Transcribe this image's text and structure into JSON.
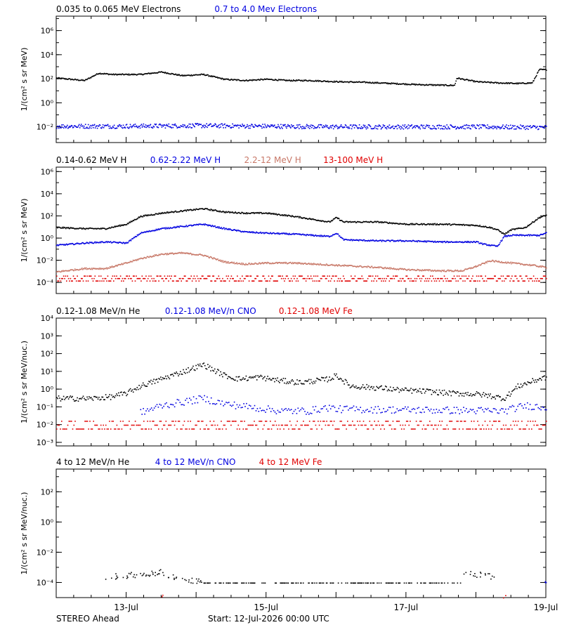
{
  "footer": {
    "spacecraft": "STEREO Ahead",
    "start": "Start: 12-Jul-2026 00:00 UTC"
  },
  "x_axis": {
    "range_days": [
      0,
      7
    ],
    "ticks": [
      {
        "day": 1,
        "label": "13-Jul"
      },
      {
        "day": 3,
        "label": "15-Jul"
      },
      {
        "day": 5,
        "label": "17-Jul"
      },
      {
        "day": 7,
        "label": "19-Jul"
      }
    ]
  },
  "chart_data": [
    {
      "type": "scatter",
      "ylabel": "1/(cm² s sr MeV)",
      "yscale": "log",
      "ylim_exp": [
        -3.3,
        7.2
      ],
      "y_ticks": [
        {
          "exp": -2,
          "label": "10⁻²"
        },
        {
          "exp": 0,
          "label": "10⁰"
        },
        {
          "exp": 2,
          "label": "10²"
        },
        {
          "exp": 4,
          "label": "10⁴"
        },
        {
          "exp": 6,
          "label": "10⁶"
        }
      ],
      "legend": [
        {
          "label": "0.035 to 0.065 MeV Electrons",
          "color": "#000000"
        },
        {
          "label": "0.7 to 4.0 Mev Electrons",
          "color": "#0000e0"
        }
      ],
      "series": [
        {
          "name": "0.035 to 0.065 MeV Electrons",
          "color": "#000000",
          "x": [
            0,
            0.4,
            0.6,
            0.8,
            1.2,
            1.5,
            1.8,
            2.1,
            2.4,
            2.7,
            3.0,
            3.3,
            3.6,
            4.0,
            4.4,
            4.8,
            5.2,
            5.6,
            5.69,
            5.72,
            6.0,
            6.3,
            6.6,
            6.8,
            6.9,
            7.0
          ],
          "y_exp": [
            2.1,
            1.9,
            2.5,
            2.4,
            2.4,
            2.6,
            2.3,
            2.4,
            2.0,
            1.9,
            2.0,
            1.9,
            1.9,
            1.8,
            1.75,
            1.65,
            1.55,
            1.5,
            1.5,
            2.1,
            1.8,
            1.7,
            1.65,
            1.7,
            2.8,
            2.8
          ]
        },
        {
          "name": "0.7 to 4.0 Mev Electrons",
          "color": "#0000e0",
          "x": [
            0,
            1,
            2,
            3,
            4,
            5,
            6,
            7
          ],
          "y_exp": [
            -1.9,
            -1.9,
            -1.85,
            -1.9,
            -1.95,
            -1.95,
            -1.95,
            -2.0
          ]
        }
      ]
    },
    {
      "type": "scatter",
      "ylabel": "1/(cm² s sr MeV)",
      "yscale": "log",
      "ylim_exp": [
        -5,
        6.4
      ],
      "y_ticks": [
        {
          "exp": -4,
          "label": "10⁻⁴"
        },
        {
          "exp": -2,
          "label": "10⁻²"
        },
        {
          "exp": 0,
          "label": "10⁰"
        },
        {
          "exp": 2,
          "label": "10²"
        },
        {
          "exp": 4,
          "label": "10⁴"
        },
        {
          "exp": 6,
          "label": "10⁶"
        }
      ],
      "legend": [
        {
          "label": "0.14-0.62 MeV H",
          "color": "#000000"
        },
        {
          "label": "0.62-2.22 MeV H",
          "color": "#0000e0"
        },
        {
          "label": "2.2-12 MeV H",
          "color": "#c87868"
        },
        {
          "label": "13-100 MeV H",
          "color": "#e00000"
        }
      ],
      "series": [
        {
          "name": "0.14-0.62 MeV H",
          "color": "#000000",
          "x": [
            0,
            0.4,
            0.7,
            1.0,
            1.2,
            1.5,
            1.8,
            2.1,
            2.4,
            2.7,
            3.0,
            3.4,
            3.9,
            4.0,
            4.1,
            4.6,
            5.0,
            5.5,
            6.0,
            6.2,
            6.3,
            6.4,
            6.5,
            6.7,
            6.9,
            7.0
          ],
          "y_exp": [
            1.0,
            0.9,
            0.9,
            1.3,
            2.0,
            2.3,
            2.5,
            2.7,
            2.4,
            2.3,
            2.3,
            2.0,
            1.5,
            1.9,
            1.5,
            1.5,
            1.3,
            1.3,
            1.2,
            1.0,
            0.8,
            0.4,
            0.8,
            1.0,
            1.9,
            2.1
          ]
        },
        {
          "name": "0.62-2.22 MeV H",
          "color": "#0000e0",
          "x": [
            0,
            0.4,
            0.7,
            1.0,
            1.2,
            1.5,
            1.8,
            2.1,
            2.4,
            2.7,
            3.0,
            3.4,
            3.9,
            4.0,
            4.1,
            4.6,
            5.0,
            5.5,
            6.0,
            6.1,
            6.3,
            6.4,
            6.5,
            6.7,
            6.9,
            7.0
          ],
          "y_exp": [
            -0.6,
            -0.4,
            -0.3,
            -0.4,
            0.5,
            0.9,
            1.1,
            1.3,
            0.9,
            0.6,
            0.5,
            0.4,
            0.2,
            0.5,
            -0.1,
            -0.2,
            -0.2,
            -0.3,
            -0.3,
            -0.5,
            -0.7,
            0.2,
            0.3,
            0.3,
            0.3,
            0.5
          ]
        },
        {
          "name": "2.2-12 MeV H",
          "color": "#c87868",
          "x": [
            0,
            0.4,
            0.7,
            1.0,
            1.2,
            1.5,
            1.8,
            2.1,
            2.4,
            2.7,
            3.0,
            3.4,
            4.0,
            4.6,
            5.0,
            5.5,
            5.8,
            6.0,
            6.2,
            6.5,
            6.8,
            7.0
          ],
          "y_exp": [
            -3.0,
            -2.7,
            -2.7,
            -2.2,
            -1.8,
            -1.4,
            -1.3,
            -1.5,
            -2.1,
            -2.3,
            -2.2,
            -2.2,
            -2.4,
            -2.6,
            -2.8,
            -2.9,
            -2.9,
            -2.5,
            -2.0,
            -2.2,
            -2.4,
            -2.6
          ]
        },
        {
          "name": "13-100 MeV H",
          "color": "#e00000",
          "x": [
            0,
            7
          ],
          "y_exp": [
            -3.6,
            -3.6
          ]
        }
      ]
    },
    {
      "type": "scatter",
      "ylabel": "1/(cm² s sr MeV/nuc.)",
      "yscale": "log",
      "ylim_exp": [
        -3.2,
        4.0
      ],
      "y_ticks": [
        {
          "exp": -3,
          "label": "10⁻³"
        },
        {
          "exp": -2,
          "label": "10⁻²"
        },
        {
          "exp": -1,
          "label": "10⁻¹"
        },
        {
          "exp": 0,
          "label": "10⁰"
        },
        {
          "exp": 1,
          "label": "10¹"
        },
        {
          "exp": 2,
          "label": "10²"
        },
        {
          "exp": 3,
          "label": "10³"
        },
        {
          "exp": 4,
          "label": "10⁴"
        }
      ],
      "legend": [
        {
          "label": "0.12-1.08 MeV/n He",
          "color": "#000000"
        },
        {
          "label": "0.12-1.08 MeV/n CNO",
          "color": "#0000e0"
        },
        {
          "label": "0.12-1.08 MeV Fe",
          "color": "#e00000"
        }
      ],
      "series": [
        {
          "name": "0.12-1.08 MeV/n He",
          "color": "#000000",
          "x": [
            0,
            0.5,
            0.8,
            1.0,
            1.2,
            1.5,
            1.8,
            2.1,
            2.4,
            2.6,
            2.9,
            3.2,
            3.5,
            3.9,
            4.0,
            4.2,
            4.6,
            5.0,
            5.3,
            5.6,
            6.0,
            6.2,
            6.4,
            6.6,
            6.9,
            7.0
          ],
          "y_exp": [
            -0.5,
            -0.5,
            -0.4,
            -0.2,
            0.2,
            0.6,
            1.0,
            1.4,
            0.8,
            0.6,
            0.7,
            0.5,
            0.4,
            0.6,
            0.8,
            0.2,
            0.1,
            -0.05,
            -0.1,
            -0.2,
            -0.25,
            -0.35,
            -0.5,
            0.2,
            0.6,
            0.7
          ]
        },
        {
          "name": "0.12-1.08 MeV/n CNO",
          "color": "#0000e0",
          "x": [
            1.2,
            1.5,
            1.8,
            2.1,
            2.4,
            2.8,
            3.2,
            3.6,
            3.9,
            4.0,
            6.4,
            6.7,
            7.0
          ],
          "y_exp": [
            -1.3,
            -0.9,
            -0.7,
            -0.5,
            -0.8,
            -1.0,
            -1.2,
            -1.2,
            -1.0,
            -1.1,
            -1.2,
            -0.9,
            -1.0
          ]
        },
        {
          "name": "0.12-1.08 MeV Fe",
          "color": "#e00000",
          "x": [
            0,
            7
          ],
          "y_exp": [
            -2.0,
            -2.0
          ]
        }
      ]
    },
    {
      "type": "scatter",
      "ylabel": "1/(cm² s sr MeV/nuc.)",
      "yscale": "log",
      "ylim_exp": [
        -5.0,
        3.5
      ],
      "y_ticks": [
        {
          "exp": -4,
          "label": "10⁻⁴"
        },
        {
          "exp": -2,
          "label": "10⁻²"
        },
        {
          "exp": 0,
          "label": "10⁰"
        },
        {
          "exp": 2,
          "label": "10²"
        }
      ],
      "legend": [
        {
          "label": "4 to 12 MeV/n He",
          "color": "#000000"
        },
        {
          "label": "4 to 12 MeV/n CNO",
          "color": "#0000e0"
        },
        {
          "label": "4 to 12 MeV Fe",
          "color": "#e00000"
        }
      ],
      "series": [
        {
          "name": "4 to 12 MeV/n He",
          "color": "#000000",
          "x": [
            0.7,
            1.0,
            1.3,
            1.5,
            1.7,
            2.0,
            5.9,
            6.1,
            6.3
          ],
          "y_exp": [
            -3.6,
            -3.5,
            -3.4,
            -3.3,
            -3.6,
            -3.9,
            -3.4,
            -3.5,
            -3.6
          ]
        },
        {
          "name": "4 to 12 MeV/n CNO",
          "color": "#0000e0",
          "x": [
            7.0
          ],
          "y_exp": [
            -4.0
          ]
        },
        {
          "name": "4 to 12 MeV Fe",
          "color": "#e00000",
          "x": [
            1.5,
            6.4
          ],
          "y_exp": [
            -4.9,
            -4.9
          ]
        }
      ]
    }
  ]
}
